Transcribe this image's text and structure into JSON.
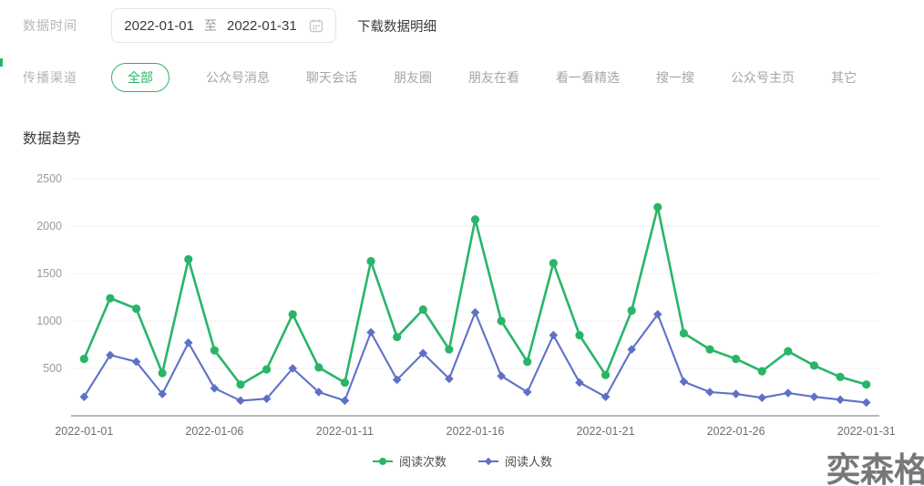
{
  "filters": {
    "date_label": "数据时间",
    "date_start": "2022-01-01",
    "date_separator": "至",
    "date_end": "2022-01-31",
    "download_label": "下载数据明细",
    "channel_label": "传播渠道",
    "channels": [
      {
        "label": "全部",
        "active": true
      },
      {
        "label": "公众号消息",
        "active": false
      },
      {
        "label": "聊天会话",
        "active": false
      },
      {
        "label": "朋友圈",
        "active": false
      },
      {
        "label": "朋友在看",
        "active": false
      },
      {
        "label": "看一看精选",
        "active": false
      },
      {
        "label": "搜一搜",
        "active": false
      },
      {
        "label": "公众号主页",
        "active": false
      },
      {
        "label": "其它",
        "active": false
      }
    ]
  },
  "chart": {
    "title": "数据趋势"
  },
  "chart_data": {
    "type": "line",
    "title": "数据趋势",
    "x": [
      "2022-01-01",
      "2022-01-02",
      "2022-01-03",
      "2022-01-04",
      "2022-01-05",
      "2022-01-06",
      "2022-01-07",
      "2022-01-08",
      "2022-01-09",
      "2022-01-10",
      "2022-01-11",
      "2022-01-12",
      "2022-01-13",
      "2022-01-14",
      "2022-01-15",
      "2022-01-16",
      "2022-01-17",
      "2022-01-18",
      "2022-01-19",
      "2022-01-20",
      "2022-01-21",
      "2022-01-22",
      "2022-01-23",
      "2022-01-24",
      "2022-01-25",
      "2022-01-26",
      "2022-01-27",
      "2022-01-28",
      "2022-01-29",
      "2022-01-30",
      "2022-01-31"
    ],
    "x_tick_labels": [
      "2022-01-01",
      "2022-01-06",
      "2022-01-11",
      "2022-01-16",
      "2022-01-21",
      "2022-01-26",
      "2022-01-31"
    ],
    "series": [
      {
        "name": "阅读次数",
        "color": "#29b569",
        "marker": "circle",
        "values": [
          600,
          1240,
          1130,
          450,
          1650,
          690,
          330,
          490,
          1070,
          510,
          350,
          1630,
          830,
          1120,
          700,
          2070,
          1000,
          570,
          1610,
          850,
          430,
          1110,
          2200,
          870,
          700,
          600,
          470,
          680,
          530,
          410,
          330
        ]
      },
      {
        "name": "阅读人数",
        "color": "#5f71c6",
        "marker": "diamond",
        "values": [
          200,
          640,
          570,
          230,
          770,
          290,
          160,
          180,
          500,
          250,
          160,
          880,
          380,
          660,
          390,
          1090,
          420,
          250,
          850,
          350,
          200,
          700,
          1070,
          360,
          250,
          230,
          190,
          240,
          200,
          170,
          140
        ]
      }
    ],
    "ylim": [
      0,
      2500
    ],
    "yticks": [
      500,
      1000,
      1500,
      2000,
      2500
    ],
    "grid": true,
    "legend_position": "bottom"
  },
  "watermark": "奕森格",
  "colors": {
    "accent_green": "#2ab468",
    "series_green": "#29b569",
    "series_blue": "#5f71c6",
    "grid_line": "#f2f2f2",
    "axis_line": "#bababa",
    "y_tick_text": "#9a9a9a",
    "x_tick_text": "#6f6f6f"
  }
}
